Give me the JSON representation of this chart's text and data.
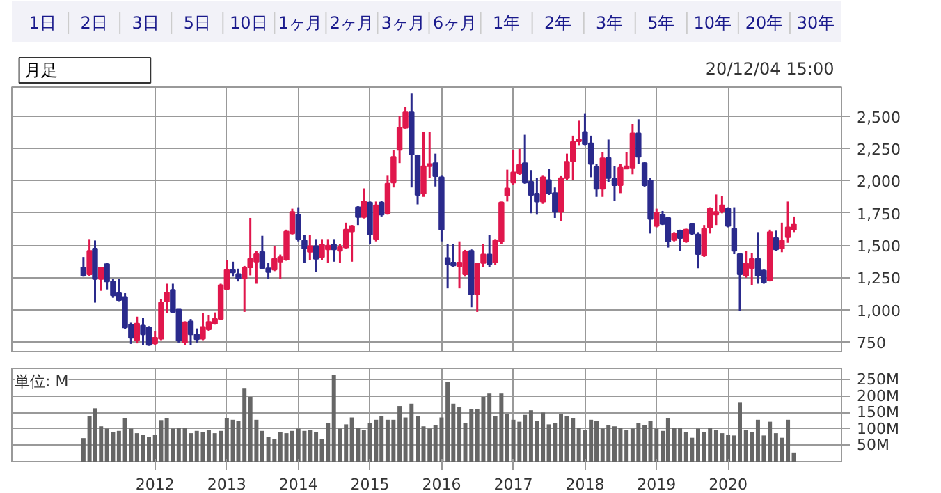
{
  "chart_data": [
    {
      "type": "other",
      "annotations": [
        "1日",
        "2日",
        "3日",
        "5日",
        "10日",
        "1ヶ月",
        "2ヶ月",
        "3ヶ月",
        "6ヶ月",
        "1年",
        "2年",
        "3年",
        "5年",
        "10年",
        "20年",
        "30年",
        "月足",
        "20/12/04 15:00"
      ]
    },
    {
      "type": "candlestick",
      "tick_labels": "y",
      "grid": true,
      "xlim": [
        "2010-01",
        "2021-08"
      ],
      "ylim": [
        675,
        2725
      ],
      "xticks": [
        "2012",
        "2013",
        "2014",
        "2015",
        "2016",
        "2017",
        "2018",
        "2019",
        "2020"
      ],
      "yticks": [
        750,
        {
          "value": 1000,
          "label": "1,000"
        },
        {
          "value": 1250,
          "label": "1,250"
        },
        {
          "value": 1500,
          "label": "1,500"
        },
        {
          "value": 1750,
          "label": "1,750"
        },
        {
          "value": 2000,
          "label": "2,000"
        },
        {
          "value": 2250,
          "label": "2,250"
        },
        {
          "value": 2500,
          "label": "2,500"
        }
      ],
      "x": [
        "2011-01",
        "2011-02",
        "2011-03",
        "2011-04",
        "2011-05",
        "2011-06",
        "2011-07",
        "2011-08",
        "2011-09",
        "2011-10",
        "2011-11",
        "2011-12",
        "2012-01",
        "2012-02",
        "2012-03",
        "2012-04",
        "2012-05",
        "2012-06",
        "2012-07",
        "2012-08",
        "2012-09",
        "2012-10",
        "2012-11",
        "2012-12",
        "2013-01",
        "2013-02",
        "2013-03",
        "2013-04",
        "2013-05",
        "2013-06",
        "2013-07",
        "2013-08",
        "2013-09",
        "2013-10",
        "2013-11",
        "2013-12",
        "2014-01",
        "2014-02",
        "2014-03",
        "2014-04",
        "2014-05",
        "2014-06",
        "2014-07",
        "2014-08",
        "2014-09",
        "2014-10",
        "2014-11",
        "2014-12",
        "2015-01",
        "2015-02",
        "2015-03",
        "2015-04",
        "2015-05",
        "2015-06",
        "2015-07",
        "2015-08",
        "2015-09",
        "2015-10",
        "2015-11",
        "2015-12",
        "2016-01",
        "2016-02",
        "2016-03",
        "2016-04",
        "2016-05",
        "2016-06",
        "2016-07",
        "2016-08",
        "2016-09",
        "2016-10",
        "2016-11",
        "2016-12",
        "2017-01",
        "2017-02",
        "2017-03",
        "2017-04",
        "2017-05",
        "2017-06",
        "2017-07",
        "2017-08",
        "2017-09",
        "2017-10",
        "2017-11",
        "2017-12",
        "2018-01",
        "2018-02",
        "2018-03",
        "2018-04",
        "2018-05",
        "2018-06",
        "2018-07",
        "2018-08",
        "2018-09",
        "2018-10",
        "2018-11",
        "2018-12",
        "2019-01",
        "2019-02",
        "2019-03",
        "2019-04",
        "2019-05",
        "2019-06",
        "2019-07",
        "2019-08",
        "2019-09",
        "2019-10",
        "2019-11",
        "2019-12",
        "2020-01",
        "2020-02",
        "2020-03",
        "2020-04",
        "2020-05",
        "2020-06",
        "2020-07",
        "2020-08",
        "2020-09",
        "2020-10",
        "2020-11",
        "2020-12"
      ],
      "ohlc": [
        [
          1328,
          1408,
          1256,
          1263
        ],
        [
          1274,
          1547,
          1263,
          1456
        ],
        [
          1474,
          1536,
          1055,
          1237
        ],
        [
          1237,
          1328,
          1146,
          1328
        ],
        [
          1354,
          1365,
          1157,
          1219
        ],
        [
          1219,
          1237,
          1092,
          1110
        ],
        [
          1128,
          1237,
          1066,
          1074
        ],
        [
          1099,
          1128,
          848,
          862
        ],
        [
          884,
          899,
          735,
          782
        ],
        [
          764,
          946,
          739,
          892
        ],
        [
          877,
          935,
          728,
          808
        ],
        [
          862,
          873,
          720,
          728
        ],
        [
          739,
          837,
          724,
          783
        ],
        [
          775,
          1081,
          764,
          1055
        ],
        [
          1063,
          1201,
          972,
          1132
        ],
        [
          1154,
          1201,
          975,
          983
        ],
        [
          1001,
          1001,
          746,
          761
        ],
        [
          746,
          910,
          728,
          903
        ],
        [
          910,
          928,
          724,
          808
        ],
        [
          808,
          855,
          746,
          771
        ],
        [
          775,
          975,
          764,
          866
        ],
        [
          848,
          957,
          837,
          906
        ],
        [
          892,
          979,
          884,
          928
        ],
        [
          928,
          1201,
          921,
          1190
        ],
        [
          1161,
          1383,
          1154,
          1307
        ],
        [
          1307,
          1372,
          1256,
          1288
        ],
        [
          1277,
          1318,
          1219,
          1241
        ],
        [
          1241,
          1339,
          983,
          1328
        ],
        [
          1328,
          1711,
          1266,
          1394
        ],
        [
          1372,
          1456,
          1201,
          1430
        ],
        [
          1448,
          1572,
          1317,
          1321
        ],
        [
          1321,
          1365,
          1237,
          1292
        ],
        [
          1310,
          1492,
          1299,
          1394
        ],
        [
          1372,
          1427,
          1237,
          1408
        ],
        [
          1387,
          1620,
          1379,
          1605
        ],
        [
          1591,
          1783,
          1583,
          1758
        ],
        [
          1736,
          1794,
          1529,
          1547
        ],
        [
          1536,
          1576,
          1365,
          1474
        ],
        [
          1448,
          1576,
          1383,
          1492
        ],
        [
          1492,
          1547,
          1292,
          1394
        ],
        [
          1408,
          1547,
          1383,
          1503
        ],
        [
          1467,
          1547,
          1365,
          1496
        ],
        [
          1503,
          1547,
          1372,
          1467
        ],
        [
          1456,
          1510,
          1365,
          1485
        ],
        [
          1481,
          1674,
          1474,
          1620
        ],
        [
          1605,
          1656,
          1372,
          1649
        ],
        [
          1794,
          1802,
          1656,
          1718
        ],
        [
          1718,
          1940,
          1707,
          1838
        ],
        [
          1831,
          1838,
          1510,
          1583
        ],
        [
          1547,
          1838,
          1529,
          1809
        ],
        [
          1831,
          1845,
          1722,
          1736
        ],
        [
          1747,
          2038,
          1736,
          1976
        ],
        [
          1984,
          2238,
          1947,
          2184
        ],
        [
          2238,
          2500,
          2136,
          2409
        ],
        [
          2409,
          2573,
          2402,
          2530
        ],
        [
          2530,
          2675,
          1947,
          2202
        ],
        [
          2195,
          2202,
          1816,
          1889
        ],
        [
          1900,
          2377,
          1874,
          2111
        ],
        [
          2111,
          2377,
          2020,
          2129
        ],
        [
          2136,
          2209,
          1955,
          2035
        ],
        [
          2027,
          2038,
          1529,
          1620
        ],
        [
          1401,
          1510,
          1165,
          1354
        ],
        [
          1365,
          1510,
          1328,
          1343
        ],
        [
          1336,
          1529,
          1165,
          1365
        ],
        [
          1274,
          1463,
          1256,
          1448
        ],
        [
          1456,
          1467,
          1019,
          1117
        ],
        [
          1121,
          1365,
          983,
          1358
        ],
        [
          1361,
          1510,
          1328,
          1427
        ],
        [
          1427,
          1576,
          1328,
          1354
        ],
        [
          1365,
          1547,
          1347,
          1536
        ],
        [
          1529,
          1838,
          1510,
          1831
        ],
        [
          1885,
          2085,
          1838,
          1940
        ],
        [
          1984,
          2238,
          1965,
          2064
        ],
        [
          2056,
          2246,
          2045,
          2122
        ],
        [
          2136,
          2355,
          1976,
          1984
        ],
        [
          1991,
          2082,
          1747,
          1889
        ],
        [
          1900,
          2020,
          1736,
          1838
        ],
        [
          1838,
          2038,
          1820,
          2027
        ],
        [
          2005,
          2093,
          1889,
          1900
        ],
        [
          1904,
          1947,
          1711,
          1758
        ],
        [
          1758,
          2035,
          1685,
          2020
        ],
        [
          2020,
          2209,
          2002,
          2147
        ],
        [
          2151,
          2348,
          2002,
          2300
        ],
        [
          2304,
          2464,
          2275,
          2318
        ],
        [
          2377,
          2522,
          2275,
          2282
        ],
        [
          2289,
          2348,
          2027,
          2129
        ],
        [
          2104,
          2129,
          1874,
          1936
        ],
        [
          1936,
          2220,
          1874,
          2173
        ],
        [
          2176,
          2318,
          1991,
          2020
        ],
        [
          2013,
          2111,
          1845,
          1965
        ],
        [
          1965,
          2129,
          1903,
          2100
        ],
        [
          2093,
          2220,
          2093,
          2111
        ],
        [
          2100,
          2439,
          2049,
          2366
        ],
        [
          2366,
          2475,
          2129,
          2184
        ],
        [
          2136,
          2147,
          1954,
          1965
        ],
        [
          2002,
          2020,
          1590,
          1703
        ],
        [
          1649,
          1783,
          1638,
          1754
        ],
        [
          1736,
          1765,
          1656,
          1663
        ],
        [
          1711,
          1718,
          1481,
          1529
        ],
        [
          1540,
          1601,
          1529,
          1590
        ],
        [
          1612,
          1620,
          1456,
          1554
        ],
        [
          1529,
          1627,
          1518,
          1620
        ],
        [
          1667,
          1671,
          1576,
          1590
        ],
        [
          1583,
          1601,
          1321,
          1430
        ],
        [
          1419,
          1656,
          1409,
          1627
        ],
        [
          1638,
          1794,
          1590,
          1783
        ],
        [
          1736,
          1892,
          1656,
          1758
        ],
        [
          1765,
          1882,
          1747,
          1809
        ],
        [
          1783,
          1794,
          1638,
          1649
        ],
        [
          1627,
          1794,
          1430,
          1456
        ],
        [
          1430,
          1438,
          990,
          1274
        ],
        [
          1263,
          1456,
          1248,
          1358
        ],
        [
          1321,
          1438,
          1190,
          1394
        ],
        [
          1394,
          1601,
          1201,
          1263
        ],
        [
          1303,
          1310,
          1201,
          1212
        ],
        [
          1226,
          1620,
          1219,
          1601
        ],
        [
          1554,
          1612,
          1456,
          1467
        ],
        [
          1474,
          1674,
          1445,
          1536
        ],
        [
          1561,
          1838,
          1518,
          1638
        ],
        [
          1620,
          1722,
          1601,
          1663
        ]
      ],
      "colors": [
        "#2a2a8c",
        "#e0174c",
        "#2a2a8c",
        "#e0174c",
        "#2a2a8c",
        "#2a2a8c",
        "#2a2a8c",
        "#2a2a8c",
        "#2a2a8c",
        "#e0174c",
        "#2a2a8c",
        "#2a2a8c",
        "#e0174c",
        "#e0174c",
        "#e0174c",
        "#2a2a8c",
        "#2a2a8c",
        "#e0174c",
        "#2a2a8c",
        "#2a2a8c",
        "#e0174c",
        "#e0174c",
        "#e0174c",
        "#e0174c",
        "#e0174c",
        "#2a2a8c",
        "#2a2a8c",
        "#e0174c",
        "#e0174c",
        "#e0174c",
        "#2a2a8c",
        "#2a2a8c",
        "#e0174c",
        "#e0174c",
        "#e0174c",
        "#e0174c",
        "#2a2a8c",
        "#2a2a8c",
        "#e0174c",
        "#2a2a8c",
        "#e0174c",
        "#e0174c",
        "#2a2a8c",
        "#e0174c",
        "#e0174c",
        "#e0174c",
        "#2a2a8c",
        "#e0174c",
        "#2a2a8c",
        "#e0174c",
        "#2a2a8c",
        "#e0174c",
        "#e0174c",
        "#e0174c",
        "#e0174c",
        "#2a2a8c",
        "#2a2a8c",
        "#e0174c",
        "#e0174c",
        "#2a2a8c",
        "#2a2a8c",
        "#2a2a8c",
        "#2a2a8c",
        "#e0174c",
        "#e0174c",
        "#2a2a8c",
        "#e0174c",
        "#e0174c",
        "#2a2a8c",
        "#e0174c",
        "#e0174c",
        "#e0174c",
        "#e0174c",
        "#e0174c",
        "#2a2a8c",
        "#2a2a8c",
        "#2a2a8c",
        "#e0174c",
        "#2a2a8c",
        "#2a2a8c",
        "#e0174c",
        "#e0174c",
        "#e0174c",
        "#e0174c",
        "#2a2a8c",
        "#2a2a8c",
        "#2a2a8c",
        "#e0174c",
        "#2a2a8c",
        "#2a2a8c",
        "#e0174c",
        "#e0174c",
        "#e0174c",
        "#2a2a8c",
        "#2a2a8c",
        "#2a2a8c",
        "#e0174c",
        "#2a2a8c",
        "#2a2a8c",
        "#e0174c",
        "#2a2a8c",
        "#e0174c",
        "#2a2a8c",
        "#2a2a8c",
        "#e0174c",
        "#e0174c",
        "#e0174c",
        "#e0174c",
        "#2a2a8c",
        "#2a2a8c",
        "#2a2a8c",
        "#e0174c",
        "#e0174c",
        "#2a2a8c",
        "#2a2a8c",
        "#e0174c",
        "#2a2a8c",
        "#e0174c",
        "#e0174c",
        "#e0174c"
      ]
    },
    {
      "type": "bar",
      "grid": true,
      "color": "#666666",
      "annotations": [
        "単位: M"
      ],
      "xlim": [
        "2010-01",
        "2021-08"
      ],
      "ylim": [
        0,
        285
      ],
      "xticks": [
        "2012",
        "2013",
        "2014",
        "2015",
        "2016",
        "2017",
        "2018",
        "2019",
        "2020"
      ],
      "yticks": [
        {
          "value": 50,
          "label": "50M"
        },
        {
          "value": 100,
          "label": "100M"
        },
        {
          "value": 150,
          "label": "150M"
        },
        {
          "value": 200,
          "label": "200M"
        },
        {
          "value": 250,
          "label": "250M"
        }
      ],
      "x": [
        "2011-01",
        "2011-02",
        "2011-03",
        "2011-04",
        "2011-05",
        "2011-06",
        "2011-07",
        "2011-08",
        "2011-09",
        "2011-10",
        "2011-11",
        "2011-12",
        "2012-01",
        "2012-02",
        "2012-03",
        "2012-04",
        "2012-05",
        "2012-06",
        "2012-07",
        "2012-08",
        "2012-09",
        "2012-10",
        "2012-11",
        "2012-12",
        "2013-01",
        "2013-02",
        "2013-03",
        "2013-04",
        "2013-05",
        "2013-06",
        "2013-07",
        "2013-08",
        "2013-09",
        "2013-10",
        "2013-11",
        "2013-12",
        "2014-01",
        "2014-02",
        "2014-03",
        "2014-04",
        "2014-05",
        "2014-06",
        "2014-07",
        "2014-08",
        "2014-09",
        "2014-10",
        "2014-11",
        "2014-12",
        "2015-01",
        "2015-02",
        "2015-03",
        "2015-04",
        "2015-05",
        "2015-06",
        "2015-07",
        "2015-08",
        "2015-09",
        "2015-10",
        "2015-11",
        "2015-12",
        "2016-01",
        "2016-02",
        "2016-03",
        "2016-04",
        "2016-05",
        "2016-06",
        "2016-07",
        "2016-08",
        "2016-09",
        "2016-10",
        "2016-11",
        "2016-12",
        "2017-01",
        "2017-02",
        "2017-03",
        "2017-04",
        "2017-05",
        "2017-06",
        "2017-07",
        "2017-08",
        "2017-09",
        "2017-10",
        "2017-11",
        "2017-12",
        "2018-01",
        "2018-02",
        "2018-03",
        "2018-04",
        "2018-05",
        "2018-06",
        "2018-07",
        "2018-08",
        "2018-09",
        "2018-10",
        "2018-11",
        "2018-12",
        "2019-01",
        "2019-02",
        "2019-03",
        "2019-04",
        "2019-05",
        "2019-06",
        "2019-07",
        "2019-08",
        "2019-09",
        "2019-10",
        "2019-11",
        "2019-12",
        "2020-01",
        "2020-02",
        "2020-03",
        "2020-04",
        "2020-05",
        "2020-06",
        "2020-07",
        "2020-08",
        "2020-09",
        "2020-10",
        "2020-11",
        "2020-12"
      ],
      "values": [
        72,
        139,
        163,
        108,
        101,
        90,
        94,
        132,
        101,
        87,
        82,
        76,
        83,
        127,
        132,
        101,
        104,
        104,
        87,
        94,
        90,
        97,
        87,
        94,
        132,
        128,
        125,
        225,
        198,
        128,
        94,
        76,
        69,
        90,
        87,
        94,
        101,
        94,
        97,
        90,
        69,
        118,
        264,
        101,
        114,
        135,
        104,
        97,
        118,
        128,
        139,
        128,
        128,
        170,
        135,
        177,
        139,
        108,
        101,
        111,
        135,
        243,
        177,
        166,
        118,
        160,
        160,
        198,
        208,
        139,
        208,
        146,
        128,
        122,
        143,
        157,
        125,
        150,
        114,
        118,
        146,
        139,
        132,
        104,
        97,
        128,
        125,
        101,
        111,
        108,
        104,
        97,
        101,
        118,
        111,
        125,
        101,
        94,
        132,
        104,
        104,
        90,
        73,
        101,
        90,
        104,
        97,
        87,
        83,
        80,
        180,
        97,
        90,
        128,
        80,
        122,
        87,
        73,
        128,
        28
      ]
    }
  ]
}
